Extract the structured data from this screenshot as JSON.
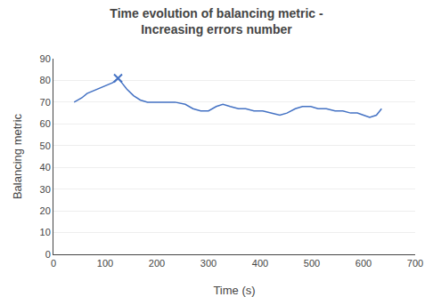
{
  "chart_data": {
    "type": "line",
    "title": "Time evolution of balancing metric -\nIncreasing errors number",
    "xlabel": "Time (s)",
    "ylabel": "Balancing metric",
    "xlim": [
      0,
      700
    ],
    "ylim": [
      0,
      90
    ],
    "xticks": [
      0,
      100,
      200,
      300,
      400,
      500,
      600,
      700
    ],
    "yticks": [
      0,
      10,
      20,
      30,
      40,
      50,
      60,
      70,
      80,
      90
    ],
    "grid": "y",
    "series": [
      {
        "type": "line",
        "color": "#4472C4",
        "x": [
          40,
          55,
          65,
          75,
          85,
          95,
          105,
          115,
          120,
          125,
          132,
          142,
          155,
          168,
          182,
          200,
          218,
          235,
          255,
          270,
          285,
          300,
          315,
          328,
          342,
          358,
          372,
          388,
          405,
          420,
          438,
          452,
          468,
          482,
          498,
          512,
          528,
          545,
          560,
          575,
          588,
          600,
          612,
          625,
          635
        ],
        "values": [
          70,
          72,
          74,
          75,
          76,
          77,
          78,
          79,
          80,
          81,
          79,
          76,
          73,
          71,
          70,
          70,
          70,
          70,
          69,
          67,
          66,
          66,
          68,
          69,
          68,
          67,
          67,
          66,
          66,
          65,
          64,
          65,
          67,
          68,
          68,
          67,
          67,
          66,
          66,
          65,
          65,
          64,
          63,
          64,
          67
        ]
      },
      {
        "type": "scatter",
        "color": "#4472C4",
        "marker": "x",
        "x": [
          125
        ],
        "values": [
          81
        ]
      }
    ]
  }
}
